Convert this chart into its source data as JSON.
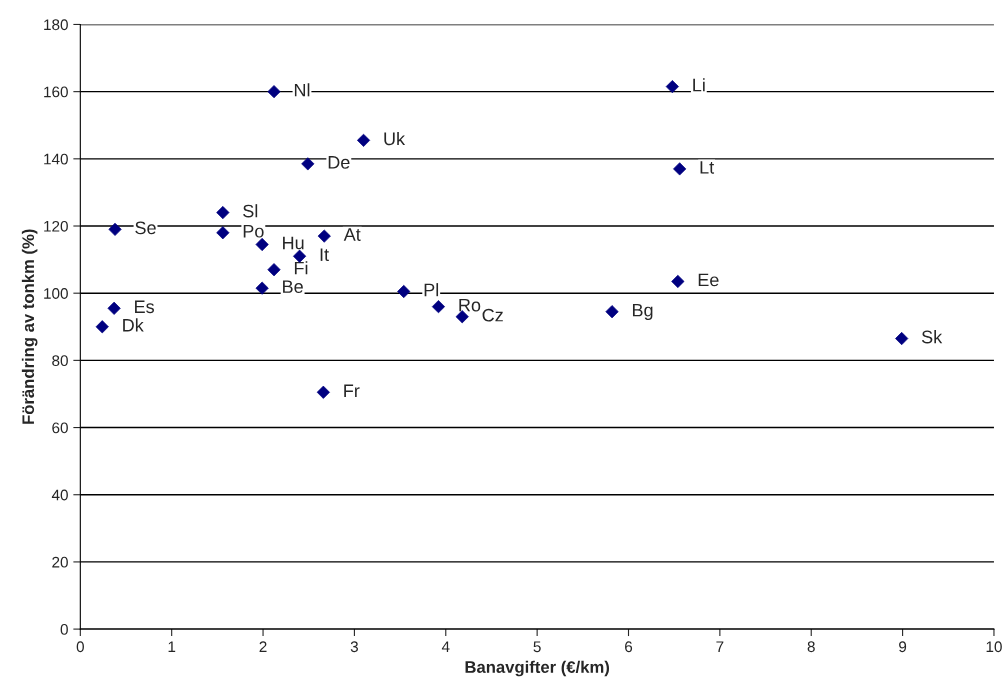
{
  "chart_data": {
    "type": "scatter",
    "xlabel": "Banavgifter (€/km)",
    "ylabel": "Förändring av tonkm (%)",
    "x": [
      2.12,
      6.48,
      3.1,
      2.49,
      6.56,
      1.56,
      0.38,
      1.56,
      1.99,
      2.67,
      2.4,
      2.12,
      6.54,
      1.99,
      3.54,
      3.92,
      4.18,
      5.82,
      0.37,
      0.24,
      8.99,
      2.66
    ],
    "series": [
      {
        "color": "#000080",
        "values": [
          160,
          161.5,
          145.5,
          138.5,
          137,
          124,
          119,
          118,
          114.5,
          117,
          111,
          107,
          103.5,
          101.5,
          100.5,
          96,
          93,
          94.5,
          95.5,
          90,
          86.5,
          70.5
        ]
      }
    ],
    "annotations": [
      {
        "text": "Nl",
        "x": 2.12,
        "y": 160
      },
      {
        "text": "Li",
        "x": 6.48,
        "y": 161.5
      },
      {
        "text": "Uk",
        "x": 3.1,
        "y": 145.5
      },
      {
        "text": "De",
        "x": 2.49,
        "y": 138.5
      },
      {
        "text": "Lt",
        "x": 6.56,
        "y": 137
      },
      {
        "text": "Sl",
        "x": 1.56,
        "y": 124
      },
      {
        "text": "Se",
        "x": 0.38,
        "y": 119
      },
      {
        "text": "Po",
        "x": 1.56,
        "y": 118
      },
      {
        "text": "Hu",
        "x": 1.99,
        "y": 114.5
      },
      {
        "text": "At",
        "x": 2.67,
        "y": 117
      },
      {
        "text": "It",
        "x": 2.4,
        "y": 111
      },
      {
        "text": "Fi",
        "x": 2.12,
        "y": 107
      },
      {
        "text": "Ee",
        "x": 6.54,
        "y": 103.5
      },
      {
        "text": "Be",
        "x": 1.99,
        "y": 101.5
      },
      {
        "text": "Pl",
        "x": 3.54,
        "y": 100.5
      },
      {
        "text": "Ro",
        "x": 3.92,
        "y": 96
      },
      {
        "text": "Cz",
        "x": 4.18,
        "y": 93
      },
      {
        "text": "Bg",
        "x": 5.82,
        "y": 94.5
      },
      {
        "text": "Es",
        "x": 0.37,
        "y": 95.5
      },
      {
        "text": "Dk",
        "x": 0.24,
        "y": 90
      },
      {
        "text": "Sk",
        "x": 8.99,
        "y": 86.5
      },
      {
        "text": "Fr",
        "x": 2.66,
        "y": 70.5
      }
    ],
    "xlim": [
      0,
      10
    ],
    "xticks": [
      0,
      1,
      2,
      3,
      4,
      5,
      6,
      7,
      8,
      9,
      10
    ],
    "ylim": [
      0,
      180
    ],
    "yticks": [
      0,
      20,
      40,
      60,
      80,
      100,
      120,
      140,
      160,
      180
    ],
    "grid": "y",
    "marker": "diamond"
  }
}
